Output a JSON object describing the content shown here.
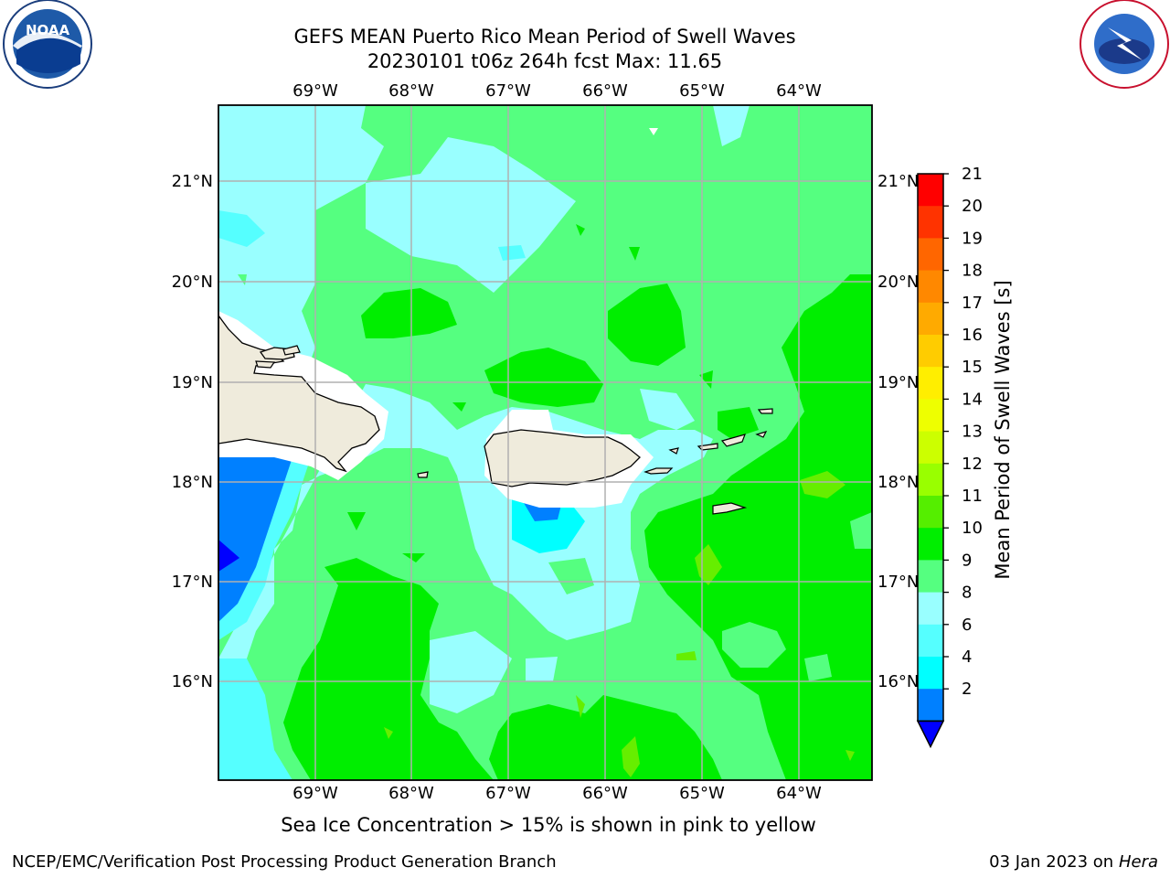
{
  "header": {
    "title_line1": "GEFS MEAN Puerto Rico Mean Period of Swell Waves",
    "title_line2": "20230101 t06z 264h fcst   Max: 11.65"
  },
  "logos": {
    "left": {
      "icon": "noaa-logo",
      "text": "NOAA"
    },
    "right": {
      "icon": "nws-logo",
      "text": "NATIONAL WEATHER SERVICE"
    }
  },
  "map": {
    "lon_labels": [
      "69°W",
      "68°W",
      "67°W",
      "66°W",
      "65°W",
      "64°W"
    ],
    "lat_labels": [
      "21°N",
      "20°N",
      "19°N",
      "18°N",
      "17°N",
      "16°N"
    ],
    "land_color": "#efebdc",
    "ocean_colors": {
      "c8_9": "#99ffff",
      "c9_10": "#55ff80",
      "c10_11": "#00ee00",
      "c6_8": "#55ffff",
      "c4_6": "#00ffff",
      "c2_4": "#0080ff",
      "lt2": "#0000ff",
      "c11_12": "#66ee00"
    }
  },
  "colorbar": {
    "label": "Mean Period of Swell Waves [s]",
    "ticks": [
      "21",
      "20",
      "19",
      "18",
      "17",
      "16",
      "15",
      "14",
      "13",
      "12",
      "11",
      "10",
      "9",
      "8",
      "6",
      "4",
      "2"
    ],
    "colors": [
      "#ff0000",
      "#ff3300",
      "#ff6600",
      "#ff8800",
      "#ffaa00",
      "#ffcc00",
      "#ffee00",
      "#eeff00",
      "#ccff00",
      "#99ff00",
      "#55ee00",
      "#00ee00",
      "#55ff80",
      "#99ffff",
      "#55ffff",
      "#00ffff",
      "#0080ff"
    ],
    "under_color": "#0000ff"
  },
  "note": "Sea Ice Concentration > 15% is shown in pink to yellow",
  "footer": {
    "left": "NCEP/EMC/Verification Post Processing Product Generation Branch",
    "right_prefix": "03 Jan 2023 on ",
    "right_machine": "Hera"
  }
}
